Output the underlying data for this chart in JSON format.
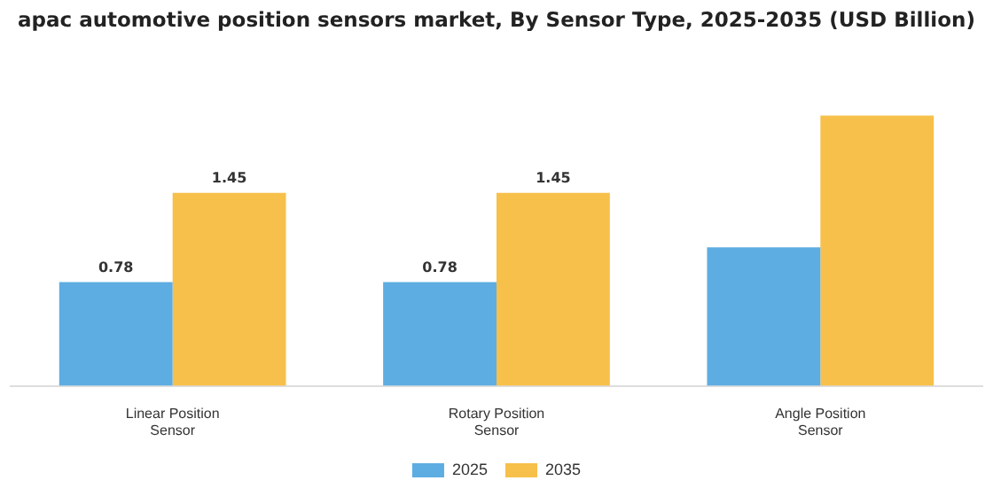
{
  "chart_data": {
    "type": "bar",
    "title": "apac automotive position sensors market, By Sensor Type, 2025-2035 (USD Billion)",
    "categories": [
      "Linear Position Sensor",
      "Rotary Position Sensor",
      "Angle Position Sensor"
    ],
    "legend": "bottom",
    "series": [
      {
        "name": "2025",
        "color": "#5dade2",
        "values": [
          0.78,
          0.78,
          1.04
        ],
        "value_labels": [
          "0.78",
          "0.78",
          null
        ]
      },
      {
        "name": "2035",
        "color": "#f7c04a",
        "values": [
          1.45,
          1.45,
          2.03
        ],
        "value_labels": [
          "1.45",
          "1.45",
          null
        ]
      }
    ]
  }
}
